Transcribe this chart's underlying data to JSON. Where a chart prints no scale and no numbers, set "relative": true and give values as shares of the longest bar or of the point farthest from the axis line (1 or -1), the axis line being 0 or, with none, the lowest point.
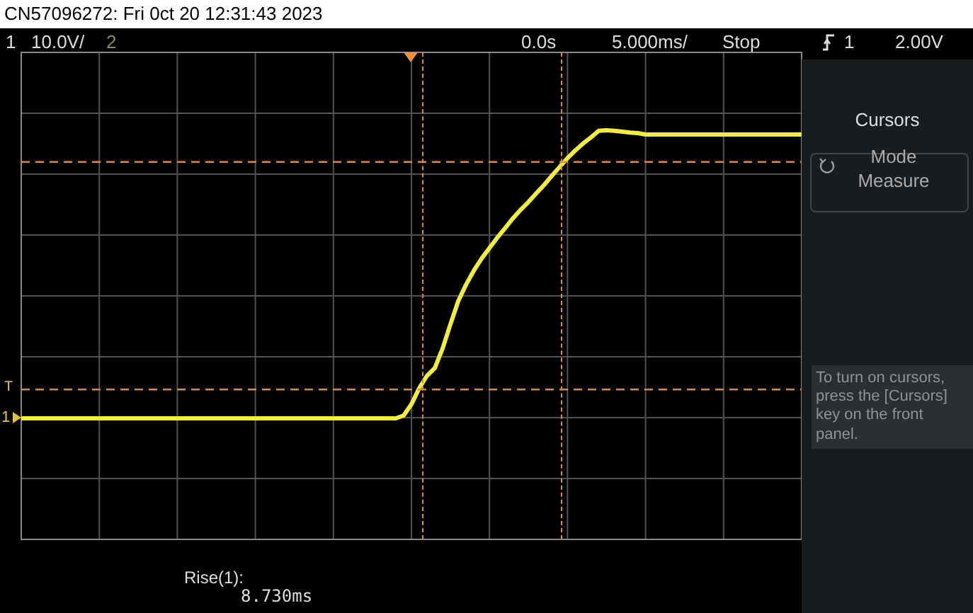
{
  "chart_data": {
    "type": "line",
    "title": "CN57096272: Fri 0ct 20 12:31:43 2023",
    "relative": true,
    "categories": [
      null,
      null,
      null,
      null,
      null,
      null,
      null,
      null,
      null,
      null,
      null,
      null,
      null,
      null,
      null,
      null,
      null,
      null,
      null,
      null,
      null,
      null,
      null,
      null,
      null,
      null,
      null,
      null,
      null,
      null,
      null,
      null,
      null,
      null,
      null,
      null,
      null,
      null,
      null,
      null,
      null,
      null,
      null,
      null,
      null,
      null,
      null,
      null,
      null,
      null,
      null,
      null,
      null,
      null,
      null,
      null,
      null,
      null,
      null,
      null,
      null,
      null,
      null,
      null,
      null,
      null,
      null,
      null,
      null,
      null,
      null,
      null,
      null,
      null,
      null,
      null,
      null,
      null,
      null,
      null,
      null,
      null,
      null,
      null,
      null,
      null,
      null,
      null,
      null,
      null,
      null,
      null,
      null,
      null,
      null,
      null,
      null,
      null,
      null,
      null,
      null
    ],
    "series": [
      {
        "color": "#f2ee3a",
        "values": [
          0,
          0,
          0,
          0,
          0,
          0,
          0,
          0,
          0,
          0,
          0,
          0,
          0,
          0,
          0,
          0,
          0,
          0,
          0,
          0,
          0,
          0,
          0,
          0,
          0,
          0,
          0,
          0,
          0,
          0,
          0,
          0,
          0,
          0,
          0,
          0,
          0,
          0,
          0,
          0,
          0,
          0,
          0,
          0,
          0,
          0,
          0,
          0,
          0,
          0.01,
          0.049,
          0.105,
          0.148,
          0.175,
          0.243,
          0.327,
          0.407,
          0.464,
          0.513,
          0.555,
          0.591,
          0.627,
          0.66,
          0.694,
          0.724,
          0.751,
          0.781,
          0.81,
          0.842,
          0.873,
          0.903,
          0.93,
          0.954,
          0.975,
          0.998,
          1,
          0.998,
          0.995,
          0.992,
          0.99,
          0.985,
          0.985,
          0.985,
          0.985,
          0.985,
          0.985,
          0.985,
          0.985,
          0.985,
          0.985,
          0.985,
          0.985,
          0.985,
          0.985,
          0.985,
          0.985,
          0.985,
          0.985,
          0.985,
          0.985,
          0.985
        ]
      }
    ],
    "grid": true,
    "legend": false,
    "marker": "none",
    "line_style": "solid",
    "ref_lines": [
      {
        "axis": "y",
        "value": 0.89,
        "color": "#e0893a",
        "line_style": "dashed"
      },
      {
        "axis": "y",
        "value": 0.1,
        "color": "#e0893a",
        "line_style": "dashed"
      }
    ],
    "annotations": [
      "1",
      "10.0V/",
      "2",
      "0.0s",
      "5.000ms/",
      "Stop",
      "1",
      "2.00V",
      "Cursors",
      "Mode",
      "Measure",
      "To turn on cursors, press the [Cursors] key on the front panel.",
      "Rise(1):",
      "8.730ms",
      "T",
      "1"
    ]
  }
}
